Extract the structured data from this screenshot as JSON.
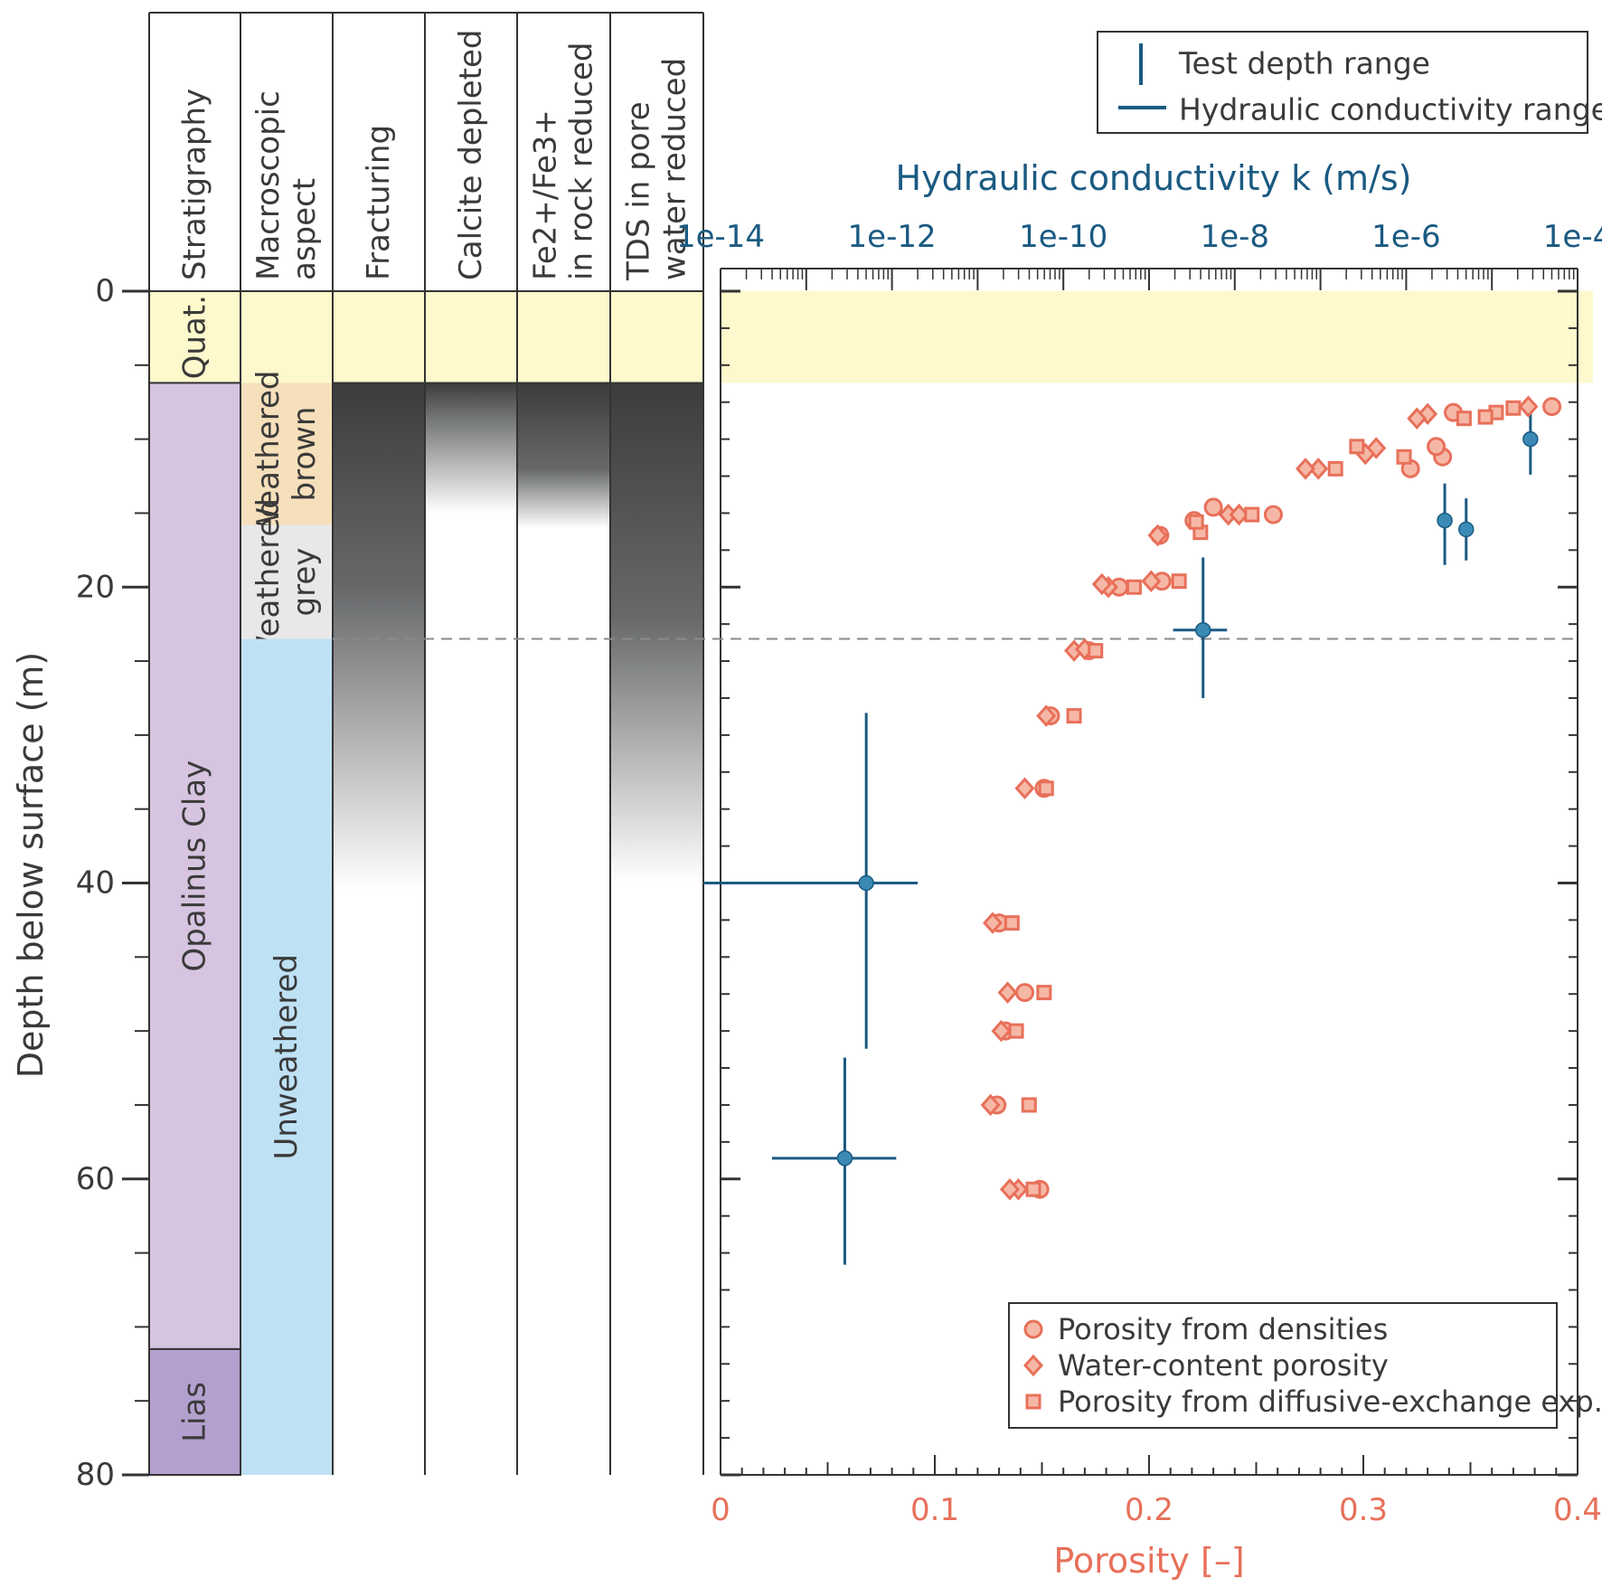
{
  "colors": {
    "blue": "#1a5a82",
    "blue_marker": "#3a8ab5",
    "salmon": "#e8705a",
    "salmon_fill": "#f6b8a6",
    "quat": "#fdf9cc",
    "opalinus": "#d6c4e0",
    "lias": "#b4a0ce",
    "weathered_brown": "#f6dfbb",
    "weathered_grey": "#e8e8e8",
    "unweathered": "#bfe1f4",
    "dark_grey": "#3a3c3e",
    "dashed": "#8a8a8a"
  },
  "columns": {
    "headers": [
      "Stratigraphy",
      "Macroscopic\naspect",
      "Fracturing",
      "Calcite depleted",
      "Fe2+/Fe3+\nin rock reduced",
      "TDS in pore\nwater reduced"
    ],
    "stratigraphy": [
      {
        "label": "Quat.",
        "top": 0,
        "bottom": 6.2,
        "color": "quat"
      },
      {
        "label": "Opalinus Clay",
        "top": 6.2,
        "bottom": 71.5,
        "color": "opalinus"
      },
      {
        "label": "Lias",
        "top": 71.5,
        "bottom": 80,
        "color": "lias"
      }
    ],
    "macroscopic": [
      {
        "label": "Quat",
        "text": "",
        "top": 0,
        "bottom": 6.2,
        "color": "quat"
      },
      {
        "label": "Weathered\nbrown",
        "top": 6.2,
        "bottom": 15.8,
        "color": "weathered_brown"
      },
      {
        "label": "Weathered\ngrey",
        "top": 15.8,
        "bottom": 23.5,
        "color": "weathered_grey"
      },
      {
        "label": "Unweathered",
        "top": 23.5,
        "bottom": 80,
        "color": "unweathered"
      }
    ],
    "gradients": [
      {
        "name": "fracturing",
        "top": 6.2,
        "solid_to": 20,
        "fade_to": 40.5
      },
      {
        "name": "calcite",
        "top": 6.2,
        "solid_to": 8,
        "fade_to": 15
      },
      {
        "name": "fe",
        "top": 6.2,
        "solid_to": 12,
        "fade_to": 16
      },
      {
        "name": "tds",
        "top": 6.2,
        "solid_to": 22,
        "fade_to": 40
      }
    ]
  },
  "chart_data": {
    "type": "scatter",
    "ylabel": "Depth below surface (m)",
    "ylim": [
      0,
      80
    ],
    "y_ticks": [
      "0",
      "20",
      "40",
      "60",
      "80"
    ],
    "y_inverted": true,
    "x_top": {
      "label": "Hydraulic conductivity k (m/s)",
      "scale": "log",
      "range_exp": [
        -14,
        -4
      ],
      "tick_labels": [
        "1e-14",
        "1e-12",
        "1e-10",
        "1e-8",
        "1e-6",
        "1e-4"
      ]
    },
    "x_bottom": {
      "label": "Porosity [–]",
      "range": [
        0,
        0.4
      ],
      "tick_labels": [
        "0",
        "0.1",
        "0.2",
        "0.3",
        "0.4"
      ]
    },
    "boundary_depth": 23.5,
    "quaternary_depth": 6.2,
    "conductivity": [
      {
        "depth": 40.0,
        "k_exp": -12.3,
        "k_min_exp": -14.2,
        "k_max_exp": -11.7,
        "d_min": 28.5,
        "d_max": 51.2
      },
      {
        "depth": 58.6,
        "k_exp": -12.55,
        "k_min_exp": -13.4,
        "k_max_exp": -11.95,
        "d_min": 51.8,
        "d_max": 65.8
      },
      {
        "depth": 22.9,
        "k_exp": -8.37,
        "k_min_exp": -8.72,
        "k_max_exp": -8.09,
        "d_min": 18.0,
        "d_max": 27.5
      },
      {
        "depth": 15.5,
        "k_exp": -5.55,
        "k_min_exp": -5.62,
        "k_max_exp": -5.47,
        "d_min": 13.0,
        "d_max": 18.5
      },
      {
        "depth": 16.1,
        "k_exp": -5.3,
        "k_min_exp": -5.38,
        "k_max_exp": -5.22,
        "d_min": 14.0,
        "d_max": 18.2
      },
      {
        "depth": 10.0,
        "k_exp": -4.55,
        "k_min_exp": -4.55,
        "k_max_exp": -4.55,
        "d_min": 7.5,
        "d_max": 12.4
      }
    ],
    "series": [
      {
        "name": "Porosity from densities",
        "marker": "circle",
        "points": [
          [
            0.388,
            7.8
          ],
          [
            0.342,
            8.2
          ],
          [
            0.337,
            11.2
          ],
          [
            0.334,
            10.5
          ],
          [
            0.322,
            12.0
          ],
          [
            0.258,
            15.1
          ],
          [
            0.23,
            14.6
          ],
          [
            0.221,
            15.5
          ],
          [
            0.205,
            16.5
          ],
          [
            0.206,
            19.6
          ],
          [
            0.186,
            20.0
          ],
          [
            0.172,
            24.3
          ],
          [
            0.154,
            28.7
          ],
          [
            0.151,
            33.6
          ],
          [
            0.13,
            42.7
          ],
          [
            0.142,
            47.4
          ],
          [
            0.133,
            50.0
          ],
          [
            0.129,
            55.0
          ],
          [
            0.149,
            60.7
          ]
        ]
      },
      {
        "name": "Water-content porosity",
        "marker": "diamond",
        "points": [
          [
            0.377,
            7.8
          ],
          [
            0.33,
            8.3
          ],
          [
            0.325,
            8.6
          ],
          [
            0.306,
            10.6
          ],
          [
            0.301,
            11.0
          ],
          [
            0.279,
            12.0
          ],
          [
            0.273,
            12.0
          ],
          [
            0.237,
            15.1
          ],
          [
            0.242,
            15.1
          ],
          [
            0.204,
            16.5
          ],
          [
            0.201,
            19.6
          ],
          [
            0.181,
            20.0
          ],
          [
            0.178,
            19.8
          ],
          [
            0.165,
            24.3
          ],
          [
            0.17,
            24.2
          ],
          [
            0.152,
            28.7
          ],
          [
            0.142,
            33.6
          ],
          [
            0.127,
            42.7
          ],
          [
            0.134,
            47.4
          ],
          [
            0.131,
            50.0
          ],
          [
            0.126,
            55.0
          ],
          [
            0.139,
            60.7
          ],
          [
            0.135,
            60.7
          ]
        ]
      },
      {
        "name": "Porosity from diffusive-exchange exp.",
        "marker": "square",
        "points": [
          [
            0.362,
            8.2
          ],
          [
            0.37,
            7.9
          ],
          [
            0.347,
            8.6
          ],
          [
            0.357,
            8.5
          ],
          [
            0.297,
            10.5
          ],
          [
            0.287,
            12.0
          ],
          [
            0.319,
            11.2
          ],
          [
            0.248,
            15.1
          ],
          [
            0.224,
            16.3
          ],
          [
            0.222,
            15.6
          ],
          [
            0.214,
            19.6
          ],
          [
            0.193,
            20.0
          ],
          [
            0.175,
            24.3
          ],
          [
            0.165,
            28.7
          ],
          [
            0.152,
            33.6
          ],
          [
            0.136,
            42.7
          ],
          [
            0.151,
            47.4
          ],
          [
            0.138,
            50.0
          ],
          [
            0.144,
            55.0
          ],
          [
            0.146,
            60.7
          ]
        ]
      }
    ],
    "legend_top": {
      "position": "top-right",
      "items": [
        "Test depth range",
        "Hydraulic conductivity range"
      ]
    },
    "legend_bottom": {
      "position": "bottom-right",
      "items": [
        "Porosity from densities",
        "Water-content porosity",
        "Porosity from diffusive-exchange exp."
      ]
    }
  }
}
